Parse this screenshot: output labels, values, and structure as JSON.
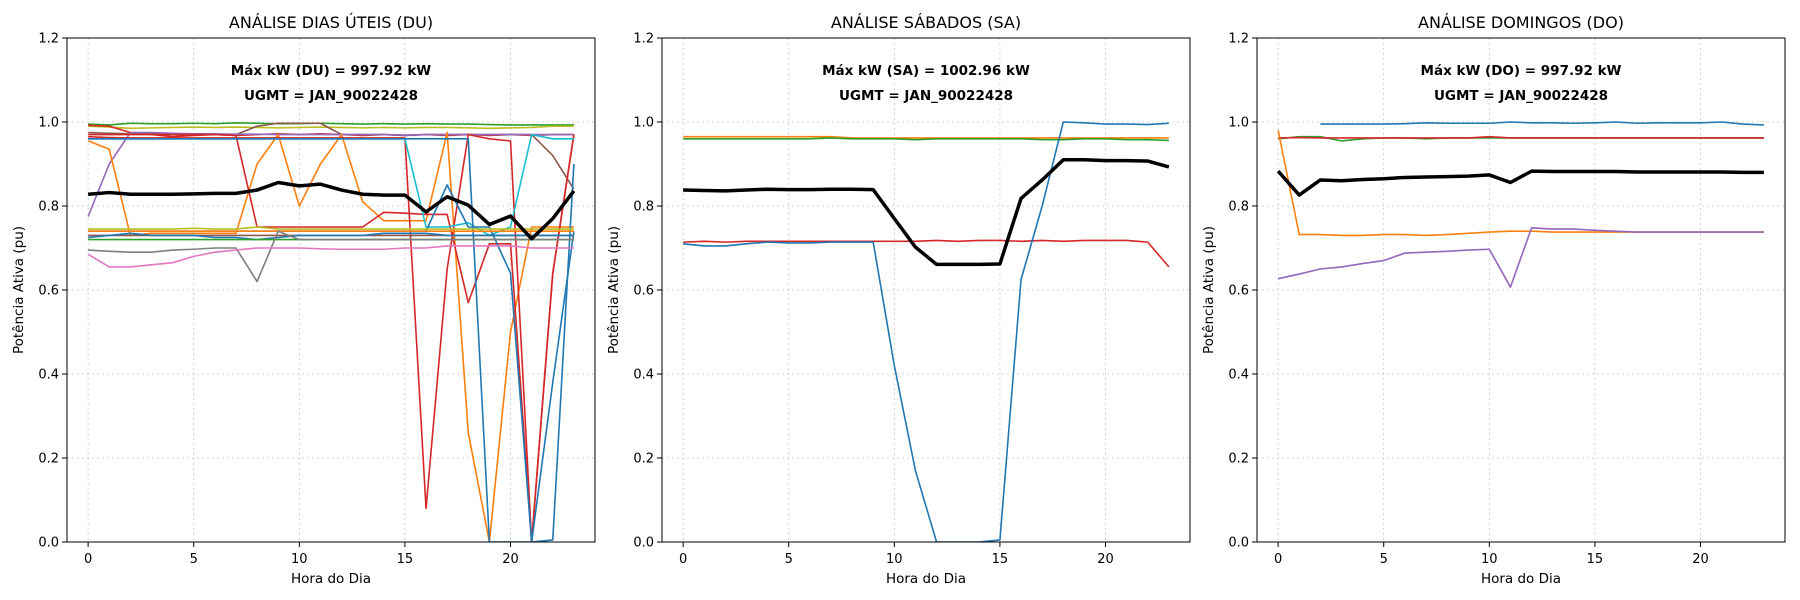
{
  "chart_data": [
    {
      "type": "line",
      "title": "ANÁLISE DIAS ÚTEIS (DU)",
      "xlabel": "Hora do Dia",
      "ylabel": "Potência Ativa (pu)",
      "xlim": [
        -1,
        24
      ],
      "ylim": [
        0,
        1.2
      ],
      "xticks": [
        0,
        5,
        10,
        15,
        20
      ],
      "yticks": [
        0.0,
        0.2,
        0.4,
        0.6,
        0.8,
        1.0,
        1.2
      ],
      "grid": true,
      "annotations": [
        "Máx kW (DU) = 997.92 kW",
        "UGMT = JAN_90022428"
      ],
      "series": [
        {
          "color": "#2ca02c",
          "values": [
            0.995,
            0.993,
            0.997,
            0.996,
            0.996,
            0.997,
            0.996,
            0.998,
            0.997,
            0.996,
            0.996,
            0.997,
            0.996,
            0.995,
            0.996,
            0.995,
            0.996,
            0.995,
            0.995,
            0.994,
            0.993,
            0.993,
            0.993,
            0.993
          ]
        },
        {
          "color": "#bcbd22",
          "values": [
            0.99,
            0.988,
            0.985,
            0.986,
            0.987,
            0.988,
            0.987,
            0.988,
            0.987,
            0.986,
            0.987,
            0.988,
            0.987,
            0.986,
            0.987,
            0.986,
            0.987,
            0.987,
            0.986,
            0.985,
            0.986,
            0.987,
            0.99,
            0.99
          ]
        },
        {
          "color": "#d62728",
          "values": [
            0.992,
            0.99,
            0.975,
            0.97,
            0.965,
            0.968,
            0.97,
            0.968,
            0.97,
            0.972,
            0.97,
            0.972,
            0.97,
            0.968,
            0.97,
            0.968,
            0.97,
            0.968,
            0.97,
            0.968,
            0.97,
            0.968,
            0.97,
            0.97
          ]
        },
        {
          "color": "#8c564b",
          "values": [
            0.975,
            0.973,
            0.972,
            0.972,
            0.97,
            0.97,
            0.971,
            0.97,
            0.99,
            0.997,
            0.997,
            0.997,
            0.97,
            0.97,
            0.97,
            0.968,
            0.97,
            0.97,
            0.97,
            0.97,
            0.97,
            0.97,
            0.92,
            0.84
          ]
        },
        {
          "color": "#9467bd",
          "values": [
            0.775,
            0.9,
            0.975,
            0.975,
            0.973,
            0.972,
            0.972,
            0.971,
            0.971,
            0.97,
            0.97,
            0.97,
            0.97,
            0.97,
            0.97,
            0.969,
            0.97,
            0.97,
            0.97,
            0.97,
            0.97,
            0.97,
            0.97,
            0.97
          ]
        },
        {
          "color": "#ff7f0e",
          "values": [
            0.955,
            0.935,
            0.73,
            0.735,
            0.735,
            0.735,
            0.735,
            0.735,
            0.9,
            0.97,
            0.8,
            0.9,
            0.97,
            0.81,
            0.765,
            0.765,
            0.765,
            0.975,
            0.26,
            0.0,
            0.5,
            0.75,
            0.75,
            0.75
          ]
        },
        {
          "color": "#d62728",
          "values": [
            0.97,
            0.97,
            0.97,
            0.97,
            0.97,
            0.97,
            0.97,
            0.968,
            0.75,
            0.75,
            0.75,
            0.75,
            0.75,
            0.75,
            0.785,
            0.783,
            0.78,
            0.78,
            0.57,
            0.71,
            0.71,
            0.0,
            0.64,
            0.97
          ]
        },
        {
          "color": "#d62728",
          "values": [
            0.965,
            0.963,
            0.962,
            0.962,
            0.962,
            0.962,
            0.962,
            0.962,
            0.962,
            0.962,
            0.962,
            0.962,
            0.962,
            0.962,
            0.962,
            0.962,
            0.08,
            0.65,
            0.97,
            0.96,
            0.955,
            0.0,
            0.64,
            0.97
          ]
        },
        {
          "color": "#17becf",
          "values": [
            0.96,
            0.96,
            0.96,
            0.96,
            0.96,
            0.96,
            0.96,
            0.96,
            0.96,
            0.96,
            0.96,
            0.96,
            0.96,
            0.96,
            0.96,
            0.96,
            0.75,
            0.75,
            0.76,
            0.73,
            0.75,
            0.97,
            0.96,
            0.96
          ]
        },
        {
          "color": "#1f77b4",
          "values": [
            0.96,
            0.96,
            0.96,
            0.96,
            0.96,
            0.96,
            0.96,
            0.96,
            0.96,
            0.96,
            0.96,
            0.96,
            0.96,
            0.96,
            0.96,
            0.96,
            0.96,
            0.96,
            0.96,
            0.0,
            0.0,
            0.0,
            0.005,
            0.9
          ]
        },
        {
          "color": "#1f77b4",
          "values": [
            0.74,
            0.74,
            0.74,
            0.74,
            0.74,
            0.74,
            0.74,
            0.74,
            0.74,
            0.74,
            0.74,
            0.74,
            0.74,
            0.74,
            0.74,
            0.74,
            0.74,
            0.85,
            0.75,
            0.75,
            0.64,
            0.0,
            0.38,
            0.74
          ]
        },
        {
          "color": "#bcbd22",
          "values": [
            0.745,
            0.745,
            0.745,
            0.745,
            0.745,
            0.747,
            0.745,
            0.745,
            0.75,
            0.745,
            0.745,
            0.745,
            0.745,
            0.745,
            0.745,
            0.745,
            0.745,
            0.745,
            0.745,
            0.745,
            0.745,
            0.745,
            0.745,
            0.745
          ]
        },
        {
          "color": "#ff7f0e",
          "values": [
            0.74,
            0.74,
            0.74,
            0.74,
            0.74,
            0.74,
            0.74,
            0.74,
            0.74,
            0.74,
            0.74,
            0.74,
            0.74,
            0.74,
            0.74,
            0.74,
            0.74,
            0.74,
            0.74,
            0.74,
            0.74,
            0.74,
            0.74,
            0.74
          ]
        },
        {
          "color": "#8c564b",
          "values": [
            0.73,
            0.73,
            0.73,
            0.73,
            0.73,
            0.73,
            0.73,
            0.73,
            0.73,
            0.73,
            0.73,
            0.73,
            0.73,
            0.73,
            0.73,
            0.73,
            0.73,
            0.73,
            0.73,
            0.73,
            0.73,
            0.73,
            0.73,
            0.73
          ]
        },
        {
          "color": "#1f77b4",
          "values": [
            0.725,
            0.73,
            0.735,
            0.73,
            0.73,
            0.73,
            0.725,
            0.725,
            0.72,
            0.725,
            0.73,
            0.73,
            0.73,
            0.73,
            0.735,
            0.735,
            0.735,
            0.73,
            0.73,
            0.73,
            0.73,
            0.73,
            0.73,
            0.73
          ]
        },
        {
          "color": "#2ca02c",
          "values": [
            0.72,
            0.72,
            0.72,
            0.72,
            0.72,
            0.72,
            0.72,
            0.72,
            0.72,
            0.72,
            0.72,
            0.72,
            0.72,
            0.72,
            0.72,
            0.72,
            0.72,
            0.72,
            0.72,
            0.72,
            0.72,
            0.72,
            0.72,
            0.72
          ]
        },
        {
          "color": "#7f7f7f",
          "values": [
            0.695,
            0.692,
            0.69,
            0.69,
            0.695,
            0.697,
            0.7,
            0.7,
            0.62,
            0.74,
            0.72,
            0.72,
            0.72,
            0.72,
            0.72,
            0.72,
            0.72,
            0.72,
            0.72,
            0.72,
            0.72,
            0.72,
            0.72,
            0.72
          ]
        },
        {
          "color": "#e377c2",
          "values": [
            0.685,
            0.655,
            0.655,
            0.66,
            0.665,
            0.68,
            0.69,
            0.695,
            0.7,
            0.7,
            0.7,
            0.698,
            0.697,
            0.697,
            0.697,
            0.7,
            0.7,
            0.705,
            0.705,
            0.705,
            0.705,
            0.7,
            0.7,
            0.7
          ]
        },
        {
          "color": "#000000",
          "width": 3.5,
          "values": [
            0.828,
            0.832,
            0.828,
            0.828,
            0.828,
            0.829,
            0.83,
            0.83,
            0.838,
            0.856,
            0.848,
            0.852,
            0.838,
            0.828,
            0.826,
            0.826,
            0.786,
            0.822,
            0.802,
            0.756,
            0.776,
            0.722,
            0.77,
            0.836
          ]
        }
      ]
    },
    {
      "type": "line",
      "title": "ANÁLISE SÁBADOS (SA)",
      "xlabel": "Hora do Dia",
      "ylabel": "Potência Ativa (pu)",
      "xlim": [
        -1,
        24
      ],
      "ylim": [
        0,
        1.2
      ],
      "xticks": [
        0,
        5,
        10,
        15,
        20
      ],
      "yticks": [
        0.0,
        0.2,
        0.4,
        0.6,
        0.8,
        1.0,
        1.2
      ],
      "grid": true,
      "annotations": [
        "Máx kW (SA) = 1002.96 kW",
        "UGMT = JAN_90022428"
      ],
      "series": [
        {
          "color": "#ff7f0e",
          "values": [
            0.965,
            0.965,
            0.965,
            0.965,
            0.965,
            0.965,
            0.965,
            0.965,
            0.962,
            0.962,
            0.962,
            0.962,
            0.962,
            0.962,
            0.962,
            0.962,
            0.962,
            0.962,
            0.962,
            0.962,
            0.962,
            0.962,
            0.962,
            0.962
          ]
        },
        {
          "color": "#2ca02c",
          "values": [
            0.96,
            0.96,
            0.96,
            0.96,
            0.96,
            0.96,
            0.96,
            0.962,
            0.96,
            0.96,
            0.96,
            0.958,
            0.96,
            0.96,
            0.96,
            0.96,
            0.96,
            0.958,
            0.958,
            0.96,
            0.96,
            0.958,
            0.958,
            0.956
          ]
        },
        {
          "color": "#d62728",
          "values": [
            0.714,
            0.716,
            0.714,
            0.716,
            0.716,
            0.716,
            0.716,
            0.716,
            0.716,
            0.716,
            0.716,
            0.716,
            0.718,
            0.716,
            0.718,
            0.718,
            0.716,
            0.718,
            0.716,
            0.718,
            0.718,
            0.718,
            0.714,
            0.655
          ]
        },
        {
          "color": "#1f77b4",
          "values": [
            0.71,
            0.705,
            0.705,
            0.71,
            0.714,
            0.712,
            0.712,
            0.714,
            0.714,
            0.714,
            0.42,
            0.17,
            0.0,
            0.0,
            0.0,
            0.005,
            0.625,
            0.8,
            1.0,
            0.998,
            0.995,
            0.995,
            0.994,
            0.997
          ]
        },
        {
          "color": "#000000",
          "width": 3.5,
          "values": [
            0.838,
            0.837,
            0.836,
            0.838,
            0.84,
            0.839,
            0.839,
            0.84,
            0.84,
            0.839,
            0.77,
            0.702,
            0.661,
            0.661,
            0.661,
            0.662,
            0.818,
            0.862,
            0.91,
            0.91,
            0.908,
            0.908,
            0.907,
            0.893
          ]
        }
      ]
    },
    {
      "type": "line",
      "title": "ANÁLISE DOMINGOS (DO)",
      "xlabel": "Hora do Dia",
      "ylabel": "Potência Ativa (pu)",
      "xlim": [
        -1,
        24
      ],
      "ylim": [
        0,
        1.2
      ],
      "xticks": [
        0,
        5,
        10,
        15,
        20
      ],
      "yticks": [
        0.0,
        0.2,
        0.4,
        0.6,
        0.8,
        1.0,
        1.2
      ],
      "grid": true,
      "annotations": [
        "Máx kW (DO) = 997.92 kW",
        "UGMT = JAN_90022428"
      ],
      "series": [
        {
          "color": "#1f77b4",
          "values": [
            null,
            null,
            0.995,
            0.995,
            0.995,
            0.995,
            0.996,
            0.998,
            0.997,
            0.997,
            0.997,
            1.0,
            0.998,
            0.998,
            0.997,
            0.998,
            1.0,
            0.997,
            0.998,
            0.998,
            0.998,
            1.0,
            0.995,
            0.993
          ]
        },
        {
          "color": "#2ca02c",
          "values": [
            0.96,
            0.965,
            0.965,
            0.955,
            0.96,
            0.962,
            0.962,
            0.96,
            0.962,
            0.962,
            0.962,
            0.962,
            0.962,
            0.962,
            0.962,
            0.962,
            0.962,
            0.962,
            0.962,
            0.962,
            0.962,
            0.962,
            0.962,
            0.962
          ]
        },
        {
          "color": "#d62728",
          "values": [
            0.962,
            0.963,
            0.962,
            0.962,
            0.962,
            0.962,
            0.962,
            0.962,
            0.962,
            0.962,
            0.965,
            0.962,
            0.962,
            0.962,
            0.962,
            0.962,
            0.962,
            0.962,
            0.962,
            0.962,
            0.962,
            0.962,
            0.962,
            0.962
          ]
        },
        {
          "color": "#ff7f0e",
          "values": [
            0.98,
            0.732,
            0.732,
            0.73,
            0.73,
            0.732,
            0.732,
            0.73,
            0.732,
            0.735,
            0.738,
            0.74,
            0.74,
            0.738,
            0.738,
            0.738,
            0.738,
            0.738,
            0.738,
            0.738,
            0.738,
            0.738,
            0.738,
            0.738
          ]
        },
        {
          "color": "#9467bd",
          "values": [
            0.627,
            0.638,
            0.65,
            0.655,
            0.663,
            0.67,
            0.688,
            0.69,
            0.692,
            0.695,
            0.697,
            0.607,
            0.748,
            0.745,
            0.745,
            0.742,
            0.74,
            0.738,
            0.738,
            0.738,
            0.738,
            0.738,
            0.738,
            0.738
          ]
        },
        {
          "color": "#000000",
          "width": 3.5,
          "values": [
            0.883,
            0.826,
            0.862,
            0.86,
            0.863,
            0.865,
            0.868,
            0.869,
            0.87,
            0.871,
            0.874,
            0.856,
            0.883,
            0.882,
            0.882,
            0.882,
            0.882,
            0.881,
            0.881,
            0.881,
            0.881,
            0.881,
            0.88,
            0.88
          ]
        }
      ]
    }
  ]
}
